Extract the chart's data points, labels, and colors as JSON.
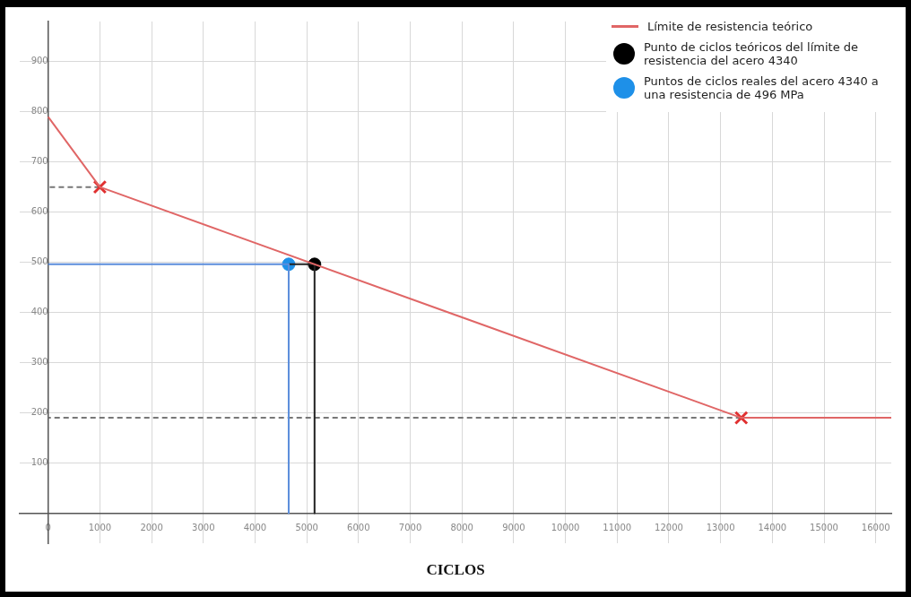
{
  "chart_data": {
    "type": "line",
    "xlabel": "CICLOS",
    "xlim": [
      -550,
      16300
    ],
    "ylim": [
      -60,
      980
    ],
    "xticks": [
      0,
      1000,
      2000,
      3000,
      4000,
      5000,
      6000,
      7000,
      8000,
      9000,
      10000,
      11000,
      12000,
      13000,
      14000,
      15000,
      16000
    ],
    "yticks": [
      100,
      200,
      300,
      400,
      500,
      600,
      700,
      800,
      900
    ],
    "grid": true,
    "legend": "top right",
    "series": [
      {
        "name": "Límite de resistencia teórico",
        "color": "#e06666",
        "marker": "none",
        "x": [
          0,
          1000,
          13400,
          16300
        ],
        "values": [
          790,
          650,
          190,
          190
        ]
      },
      {
        "type": "scatter",
        "color": "#e03030",
        "marker": "cross",
        "x": [
          1000,
          13400
        ],
        "values": [
          650,
          190
        ]
      },
      {
        "color": "#5b8ddb",
        "marker": "none",
        "x": [
          0,
          4650,
          4650
        ],
        "values": [
          496,
          496,
          0
        ]
      },
      {
        "color": "#222222",
        "marker": "none",
        "x": [
          4650,
          5150,
          5150
        ],
        "values": [
          496,
          496,
          0
        ]
      },
      {
        "color": "#777777",
        "marker": "none",
        "line_style": "dashed",
        "x": [
          1000,
          0
        ],
        "values": [
          650,
          650
        ]
      },
      {
        "color": "#777777",
        "marker": "none",
        "line_style": "dashed",
        "x": [
          13400,
          0
        ],
        "values": [
          190,
          190
        ]
      },
      {
        "name": "Punto de ciclos teóricos del límite de resistencia del acero 4340",
        "type": "scatter",
        "color": "#000000",
        "marker": "circle",
        "x": [
          5150
        ],
        "values": [
          496
        ]
      },
      {
        "name": "Puntos de ciclos reales del acero 4340 a una resistencia de 496 MPa",
        "type": "scatter",
        "color": "#1e90e8",
        "marker": "circle",
        "x": [
          4650
        ],
        "values": [
          496
        ]
      }
    ]
  }
}
